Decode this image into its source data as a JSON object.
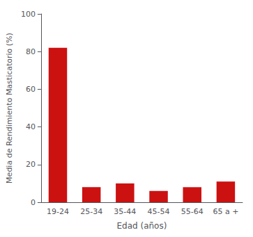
{
  "chart_data": {
    "type": "bar",
    "categories": [
      "19-24",
      "25-34",
      "35-44",
      "45-54",
      "55-64",
      "65 a +"
    ],
    "values": [
      82,
      8,
      10,
      6,
      8,
      11
    ],
    "color": "#cc1111",
    "xlabel": "Edad (años)",
    "ylabel": "Media de Rendimiento Masticatorio (%)",
    "ylim": [
      0,
      100
    ],
    "yticks": [
      0,
      20,
      40,
      60,
      80,
      100
    ],
    "grid": false
  }
}
